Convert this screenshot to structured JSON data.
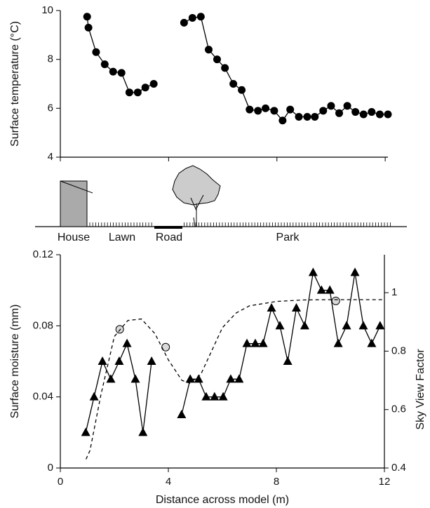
{
  "chart_data": [
    {
      "type": "line",
      "ylabel": "Surface temperature (°C)",
      "x": [
        0.99,
        1.04,
        1.32,
        1.64,
        1.95,
        2.26,
        2.55,
        2.86,
        3.14,
        3.45,
        null,
        4.57,
        4.88,
        5.19,
        5.48,
        5.79,
        6.08,
        6.39,
        6.7,
        6.99,
        7.3,
        7.58,
        7.9,
        8.21,
        8.49,
        8.81,
        9.12,
        9.4,
        9.71,
        10.0,
        10.3,
        10.6,
        10.9,
        11.2,
        11.5,
        11.8,
        12.1
      ],
      "values": [
        9.75,
        9.3,
        8.3,
        7.8,
        7.5,
        7.45,
        6.65,
        6.65,
        6.85,
        7.0,
        null,
        9.5,
        9.7,
        9.75,
        8.4,
        8.0,
        7.65,
        7.0,
        6.75,
        5.95,
        5.9,
        6.0,
        5.9,
        5.5,
        5.95,
        5.65,
        5.65,
        5.65,
        5.9,
        6.1,
        5.8,
        6.1,
        5.85,
        5.75,
        5.85,
        5.75,
        5.75
      ],
      "color": "#000000",
      "marker": "circle",
      "xlim": [
        0,
        12.1
      ],
      "xticks": [
        0,
        4,
        8,
        12
      ],
      "ylim": [
        4,
        10
      ],
      "yticks": [
        4,
        6,
        8,
        10
      ]
    },
    {
      "type": "line",
      "xlabel": "Distance across model (m)",
      "ylabel": "Surface moisture (mm)",
      "y2label": "Sky View Factor",
      "series": [
        {
          "color": "#000000",
          "marker": "triangle",
          "line_style": "solid",
          "x": [
            0.94,
            1.25,
            1.56,
            1.87,
            2.18,
            2.47,
            2.78,
            3.06,
            3.38,
            null,
            4.49,
            4.81,
            5.12,
            5.4,
            5.71,
            6.03,
            6.31,
            6.62,
            6.91,
            7.22,
            7.51,
            7.82,
            8.13,
            8.42,
            8.74,
            9.05,
            9.36,
            9.67,
            9.98,
            10.29,
            10.6,
            10.91,
            11.22,
            11.53,
            11.84
          ],
          "values": [
            0.02,
            0.04,
            0.06,
            0.05,
            0.06,
            0.07,
            0.05,
            0.02,
            0.06,
            null,
            0.03,
            0.05,
            0.05,
            0.04,
            0.04,
            0.04,
            0.05,
            0.05,
            0.07,
            0.07,
            0.07,
            0.09,
            0.08,
            0.06,
            0.09,
            0.08,
            0.11,
            0.1,
            0.1,
            0.07,
            0.08,
            0.11,
            0.08,
            0.07,
            0.08
          ]
        },
        {
          "color": "#d9d9d9",
          "marker": "circle",
          "line_style": "none",
          "x": [
            2.2,
            3.9,
            10.2
          ],
          "values": [
            0.078,
            0.068,
            0.094
          ]
        },
        {
          "color": "#000000",
          "marker": "none",
          "line_style": "dashed",
          "axis": "y2",
          "x": [
            0.95,
            1.1,
            1.5,
            2,
            2.5,
            3,
            3.5,
            4,
            4.5,
            4.8,
            5.2,
            5.6,
            6,
            6.5,
            7,
            8,
            9,
            10,
            11,
            12
          ],
          "values": [
            0.43,
            0.46,
            0.65,
            0.85,
            0.905,
            0.91,
            0.86,
            0.77,
            0.7,
            0.69,
            0.72,
            0.8,
            0.88,
            0.93,
            0.955,
            0.97,
            0.975,
            0.976,
            0.976,
            0.976
          ]
        }
      ],
      "xlim": [
        0,
        12
      ],
      "xticks": [
        0,
        4,
        8,
        12
      ],
      "ylim": [
        0,
        0.12
      ],
      "yticks": [
        0,
        0.04,
        0.08,
        0.12
      ],
      "y2lim": [
        0.4,
        1.13
      ],
      "y2ticks": [
        0.4,
        0.6,
        0.8,
        1
      ]
    }
  ],
  "schematic": {
    "labels": [
      "House",
      "Lawn",
      "Road",
      "Park"
    ]
  }
}
